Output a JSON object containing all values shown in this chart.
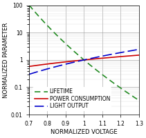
{
  "title": "",
  "xlabel": "NORMALIZED VOLTAGE",
  "ylabel": "NORMALIZED PARAMETER",
  "xlim": [
    0.7,
    1.3
  ],
  "ylim_log": [
    0.01,
    100
  ],
  "x_ticks": [
    0.7,
    0.8,
    0.9,
    1.0,
    1.1,
    1.2,
    1.3
  ],
  "y_ticks": [
    0.01,
    0.1,
    1,
    10,
    100
  ],
  "lifetime_color": "#228B22",
  "power_color": "#CC0000",
  "light_color": "#0000CC",
  "lifetime_exponent": 13,
  "power_exponent": 1.54,
  "light_exponent": 3.4,
  "legend_labels": [
    "LIFETIME",
    "POWER CONSUMPTION",
    "LIGHT OUTPUT"
  ],
  "legend_fontsize": 5.5,
  "axis_fontsize": 6,
  "tick_fontsize": 5.5,
  "figsize": [
    2.11,
    2.0
  ],
  "dpi": 100
}
